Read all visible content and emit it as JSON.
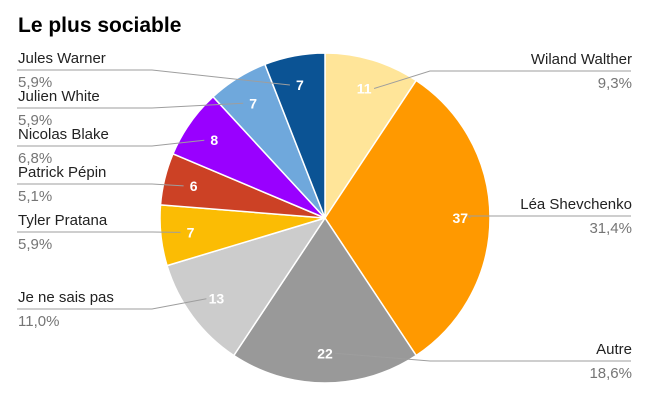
{
  "chart_data": {
    "type": "pie",
    "title": "Le plus sociable",
    "slices": [
      {
        "label": "Wiland Walther",
        "value": 11,
        "percent": "9,3%",
        "color": "#FFE599"
      },
      {
        "label": "Léa Shevchenko",
        "value": 37,
        "percent": "31,4%",
        "color": "#FF9900"
      },
      {
        "label": "Autre",
        "value": 22,
        "percent": "18,6%",
        "color": "#999999"
      },
      {
        "label": "Je ne sais pas",
        "value": 13,
        "percent": "11,0%",
        "color": "#CCCCCC"
      },
      {
        "label": "Tyler Pratana",
        "value": 7,
        "percent": "5,9%",
        "color": "#FBBC04"
      },
      {
        "label": "Patrick Pépin",
        "value": 6,
        "percent": "5,1%",
        "color": "#CC4125"
      },
      {
        "label": "Nicolas Blake",
        "value": 8,
        "percent": "6,8%",
        "color": "#9900FF"
      },
      {
        "label": "Julien White",
        "value": 7,
        "percent": "5,9%",
        "color": "#6FA8DC"
      },
      {
        "label": "Jules Warner",
        "value": 7,
        "percent": "5,9%",
        "color": "#0B5394"
      }
    ],
    "legend": "callouts"
  }
}
